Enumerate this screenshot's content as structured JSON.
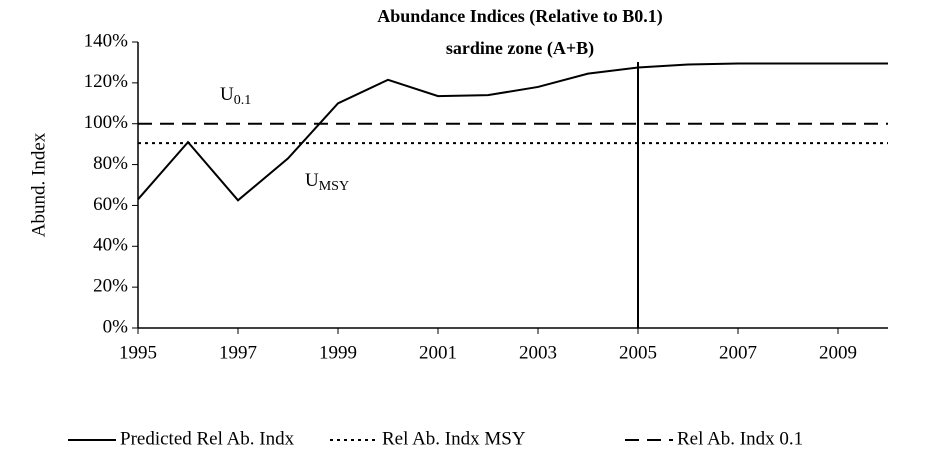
{
  "chart_data": {
    "type": "line",
    "title": "Abundance Indices (Relative to B0.1)",
    "subtitle": "sardine zone (A+B)",
    "ylabel": "Abund. Index",
    "x": [
      1995,
      1996,
      1997,
      1998,
      1999,
      2000,
      2001,
      2002,
      2003,
      2004,
      2005,
      2006,
      2007,
      2008,
      2009,
      2010
    ],
    "series": [
      {
        "name": "Predicted Rel Ab. Indx",
        "color": "#000000",
        "dash": "solid",
        "values": [
          63,
          91,
          62.5,
          83,
          110,
          121.5,
          113.5,
          114,
          118,
          124.5,
          127.5,
          129,
          129.5,
          129.5,
          129.5,
          129.5
        ]
      },
      {
        "name": "Rel Ab. Indx MSY",
        "color": "#000000",
        "dash": "dotted",
        "values": [
          90.5,
          90.5,
          90.5,
          90.5,
          90.5,
          90.5,
          90.5,
          90.5,
          90.5,
          90.5,
          90.5,
          90.5,
          90.5,
          90.5,
          90.5,
          90.5
        ]
      },
      {
        "name": "Rel Ab. Indx  0.1",
        "color": "#000000",
        "dash": "dashed",
        "values": [
          100,
          100,
          100,
          100,
          100,
          100,
          100,
          100,
          100,
          100,
          100,
          100,
          100,
          100,
          100,
          100
        ]
      }
    ],
    "xlim": [
      1995,
      2010
    ],
    "xticks": [
      1995,
      1997,
      1999,
      2001,
      2003,
      2005,
      2007,
      2009
    ],
    "ylim": [
      0,
      140
    ],
    "yticks": [
      {
        "value": 0,
        "label": "0%"
      },
      {
        "value": 20,
        "label": "20%"
      },
      {
        "value": 40,
        "label": "40%"
      },
      {
        "value": 60,
        "label": "60%"
      },
      {
        "value": 80,
        "label": "80%"
      },
      {
        "value": 100,
        "label": "100%"
      },
      {
        "value": 120,
        "label": "120%"
      },
      {
        "value": 140,
        "label": "140%"
      }
    ],
    "vline": 2005,
    "annotations": [
      {
        "text": "U",
        "sub": "0.1"
      },
      {
        "text": "U",
        "sub": "MSY"
      }
    ],
    "legend": "bottom"
  }
}
